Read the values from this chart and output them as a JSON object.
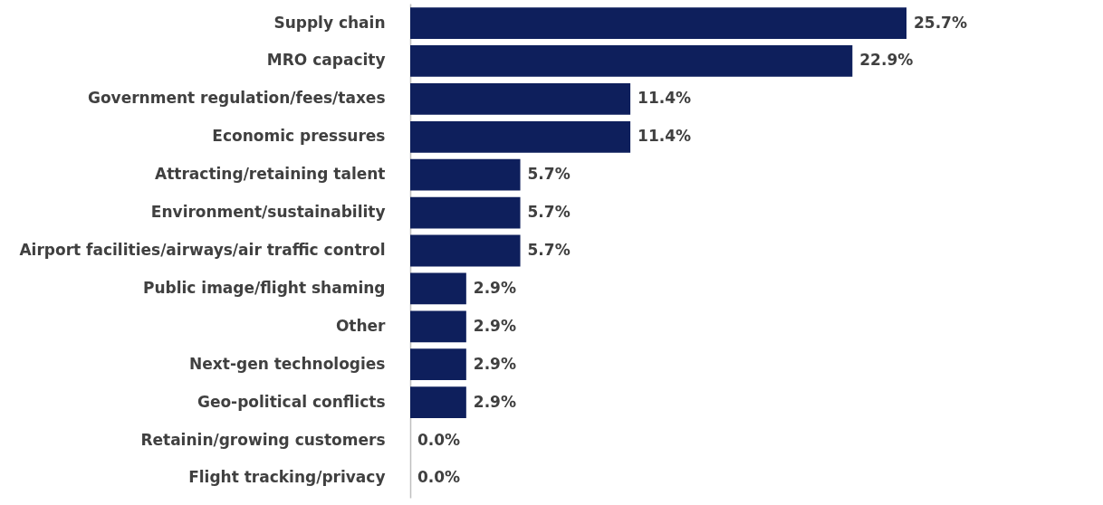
{
  "chart_data": {
    "type": "bar",
    "orientation": "horizontal",
    "categories": [
      "Supply chain",
      "MRO capacity",
      "Government regulation/fees/taxes",
      "Economic pressures",
      "Attracting/retaining talent",
      "Environment/sustainability",
      "Airport facilities/airways/air traffic control",
      "Public image/flight shaming",
      "Other",
      "Next-gen technologies",
      "Geo-political conflicts",
      "Retainin/growing customers",
      "Flight tracking/privacy"
    ],
    "values": [
      25.7,
      22.9,
      11.4,
      11.4,
      5.7,
      5.7,
      5.7,
      2.9,
      2.9,
      2.9,
      2.9,
      0.0,
      0.0
    ],
    "value_labels": [
      "25.7%",
      "22.9%",
      "11.4%",
      "11.4%",
      "5.7%",
      "5.7%",
      "5.7%",
      "2.9%",
      "2.9%",
      "2.9%",
      "2.9%",
      "0.0%",
      "0.0%"
    ],
    "color": "#0e1f5c"
  }
}
